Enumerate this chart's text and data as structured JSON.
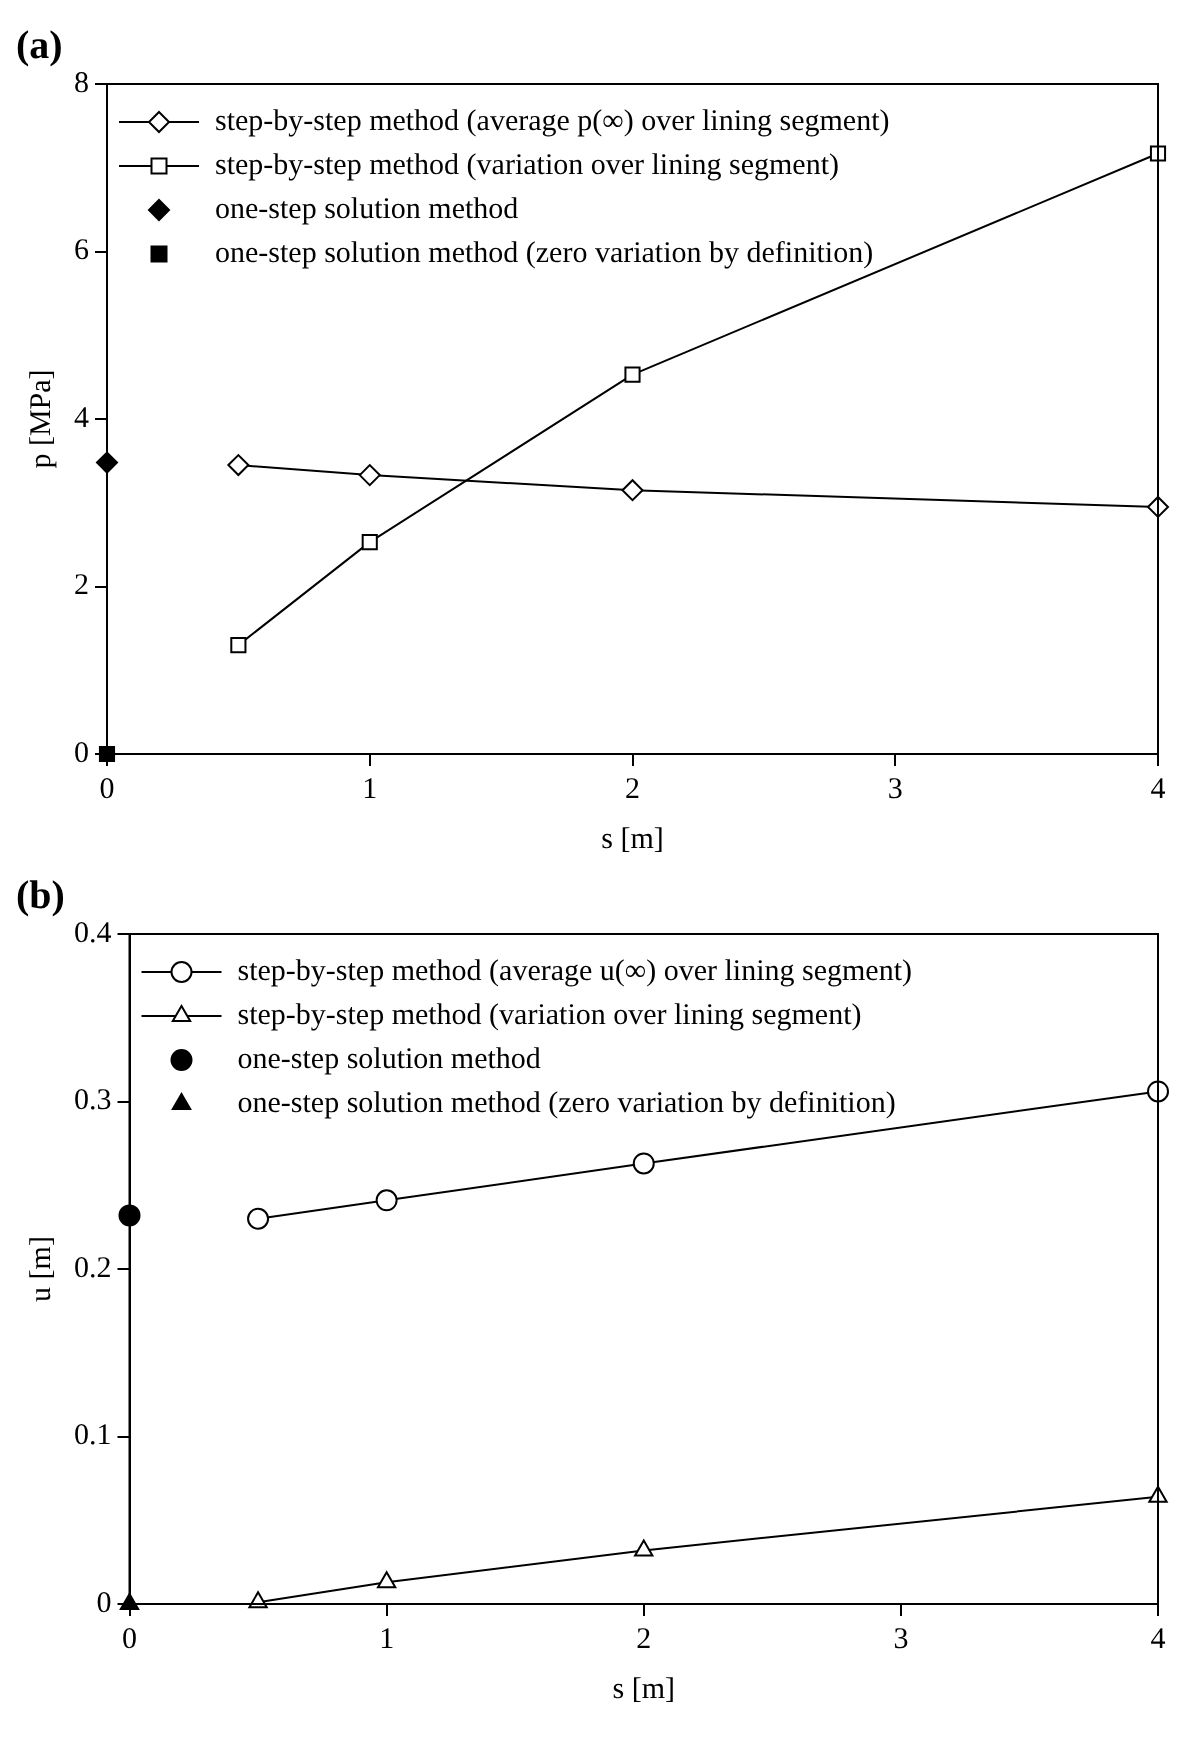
{
  "chart_data": [
    {
      "type": "line",
      "title": "(a)",
      "xlabel": "s [m]",
      "ylabel": "p [MPa]",
      "xlim": [
        0,
        4
      ],
      "xticks": [
        0,
        1,
        2,
        3,
        4
      ],
      "ylim": [
        0,
        8
      ],
      "yticks": [
        0,
        2,
        4,
        6,
        8
      ],
      "grid": false,
      "legend": "top left",
      "series": [
        {
          "name": "step-by-step method (average p(∞) over lining segment)",
          "type": "line",
          "marker": "diamond",
          "color": "#000000",
          "x": [
            0.5,
            1,
            2,
            4
          ],
          "values": [
            3.45,
            3.33,
            3.15,
            2.95
          ]
        },
        {
          "name": "step-by-step method (variation over lining segment)",
          "type": "line",
          "marker": "square",
          "color": "#000000",
          "x": [
            0.5,
            1,
            2,
            4
          ],
          "values": [
            1.3,
            2.53,
            4.53,
            7.17
          ]
        },
        {
          "name": "one-step solution method",
          "type": "scatter",
          "marker": "diamond",
          "color": "#000000",
          "x": [
            0
          ],
          "values": [
            3.48
          ]
        },
        {
          "name": "one-step solution method (zero variation by definition)",
          "type": "scatter",
          "marker": "square",
          "color": "#000000",
          "x": [
            0
          ],
          "values": [
            0
          ]
        }
      ]
    },
    {
      "type": "line",
      "title": "(b)",
      "xlabel": "s [m]",
      "ylabel": "u [m]",
      "xlim": [
        0,
        4
      ],
      "xticks": [
        0,
        1,
        2,
        3,
        4
      ],
      "ylim": [
        0,
        0.4
      ],
      "yticks": [
        0,
        0.1,
        0.2,
        0.3,
        0.4
      ],
      "grid": false,
      "legend": "top left",
      "series": [
        {
          "name": "step-by-step method (average u(∞) over lining segment)",
          "type": "line",
          "marker": "circle",
          "color": "#000000",
          "x": [
            0.5,
            1,
            2,
            4
          ],
          "values": [
            0.23,
            0.241,
            0.263,
            0.306
          ]
        },
        {
          "name": "step-by-step method (variation over lining segment)",
          "type": "line",
          "marker": "triangle",
          "color": "#000000",
          "x": [
            0.5,
            1,
            2,
            4
          ],
          "values": [
            0.001,
            0.013,
            0.032,
            0.064
          ]
        },
        {
          "name": "one-step solution method",
          "type": "scatter",
          "marker": "circle",
          "color": "#000000",
          "x": [
            0
          ],
          "values": [
            0.232
          ]
        },
        {
          "name": "one-step solution method (zero variation by definition)",
          "type": "scatter",
          "marker": "triangle",
          "color": "#000000",
          "x": [
            0
          ],
          "values": [
            0
          ]
        }
      ]
    }
  ]
}
